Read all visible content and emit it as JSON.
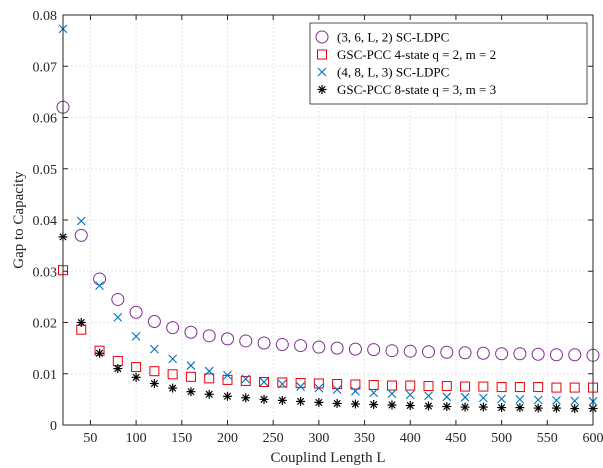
{
  "chart_data": {
    "type": "scatter",
    "xlabel": "Couplind Length L",
    "ylabel": "Gap to Capacity",
    "xlim": [
      20,
      600
    ],
    "ylim": [
      0,
      0.08
    ],
    "xticks": [
      50,
      100,
      150,
      200,
      250,
      300,
      350,
      400,
      450,
      500,
      550,
      600
    ],
    "xtick_labels": [
      "50",
      "100",
      "150",
      "200",
      "250",
      "300",
      "350",
      "400",
      "450",
      "500",
      "550",
      "600"
    ],
    "yticks": [
      0,
      0.01,
      0.02,
      0.03,
      0.04,
      0.05,
      0.06,
      0.07,
      0.08
    ],
    "ytick_labels": [
      "0",
      "0.01",
      "0.02",
      "0.03",
      "0.04",
      "0.05",
      "0.06",
      "0.07",
      "0.08"
    ],
    "grid": true,
    "legend_position": "top-right",
    "x": [
      20,
      40,
      60,
      80,
      100,
      120,
      140,
      160,
      180,
      200,
      220,
      240,
      260,
      280,
      300,
      320,
      340,
      360,
      380,
      400,
      420,
      440,
      460,
      480,
      500,
      520,
      540,
      560,
      580,
      600
    ],
    "series": [
      {
        "name": "(3, 6, L, 2) SC-LDPC",
        "marker": "circle",
        "color": "#7E2F8E",
        "values": [
          0.062,
          0.037,
          0.0285,
          0.0245,
          0.022,
          0.0202,
          0.019,
          0.0181,
          0.0174,
          0.0168,
          0.0164,
          0.016,
          0.0157,
          0.0155,
          0.0152,
          0.015,
          0.0148,
          0.0147,
          0.0145,
          0.0144,
          0.0143,
          0.0142,
          0.0141,
          0.014,
          0.0139,
          0.0139,
          0.0138,
          0.0137,
          0.0137,
          0.0136
        ]
      },
      {
        "name": "GSC-PCC 4-state q = 2, m = 2",
        "marker": "square",
        "color": "#E8000B",
        "values": [
          0.0302,
          0.0186,
          0.0145,
          0.0125,
          0.0113,
          0.0105,
          0.0099,
          0.0094,
          0.0091,
          0.0088,
          0.0086,
          0.0084,
          0.0083,
          0.0082,
          0.0081,
          0.008,
          0.0079,
          0.0078,
          0.0077,
          0.0077,
          0.0076,
          0.0076,
          0.0075,
          0.0075,
          0.0074,
          0.0074,
          0.0074,
          0.0073,
          0.0073,
          0.0073
        ]
      },
      {
        "name": "(4, 8, L, 3) SC-LDPC",
        "marker": "x",
        "color": "#0072BD",
        "values": [
          0.0773,
          0.0398,
          0.0272,
          0.021,
          0.0173,
          0.0148,
          0.0129,
          0.0116,
          0.0105,
          0.0097,
          0.009,
          0.0084,
          0.008,
          0.0075,
          0.0072,
          0.0069,
          0.0066,
          0.0063,
          0.0061,
          0.0059,
          0.0057,
          0.0055,
          0.0054,
          0.0053,
          0.0051,
          0.005,
          0.0049,
          0.0048,
          0.0047,
          0.0046
        ]
      },
      {
        "name": "GSC-PCC 8-state q = 3, m = 3",
        "marker": "asterisk",
        "color": "#000000",
        "values": [
          0.0367,
          0.02,
          0.014,
          0.011,
          0.0093,
          0.0081,
          0.0072,
          0.0065,
          0.006,
          0.0056,
          0.0053,
          0.005,
          0.0048,
          0.0046,
          0.0044,
          0.0042,
          0.0041,
          0.004,
          0.0039,
          0.0038,
          0.0037,
          0.0036,
          0.0035,
          0.0035,
          0.0034,
          0.0034,
          0.0033,
          0.0033,
          0.0032,
          0.0032
        ]
      }
    ]
  }
}
